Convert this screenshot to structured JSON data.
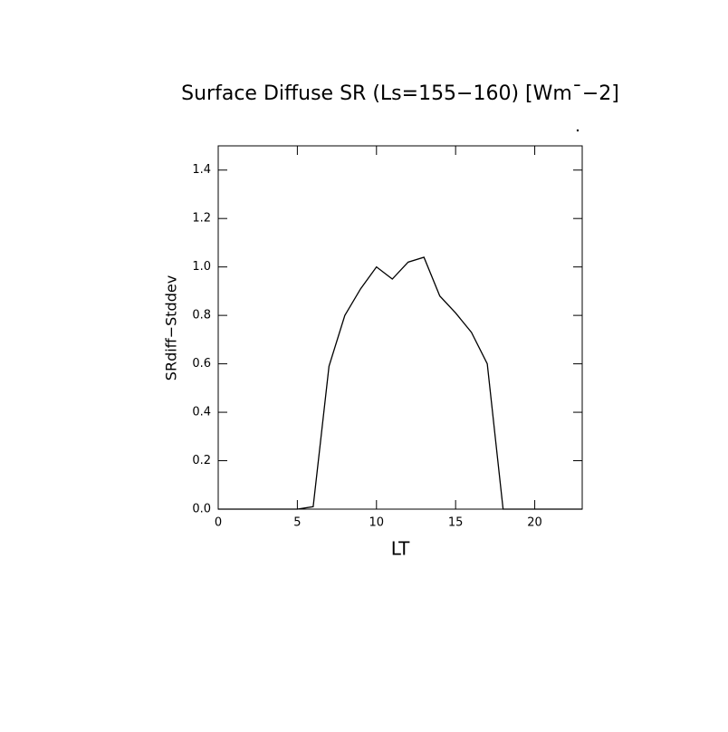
{
  "chart_data": {
    "type": "line",
    "title": "Surface Diffuse SR (Ls=155−160) [Wm¯−2]",
    "x_label": "LT",
    "y_label": "SRdiff−Stddev",
    "x": [
      0,
      1,
      2,
      3,
      4,
      5,
      6,
      7,
      8,
      9,
      10,
      11,
      12,
      13,
      14,
      15,
      16,
      17,
      18,
      19,
      20,
      21,
      22,
      23
    ],
    "series": [
      {
        "name": "SRdiff-Stddev",
        "color": "#000000",
        "values": [
          0,
          0,
          0,
          0,
          0,
          0,
          0.01,
          0.59,
          0.8,
          0.91,
          1.0,
          0.95,
          1.02,
          1.04,
          0.88,
          0.81,
          0.73,
          0.6,
          0,
          0,
          0,
          0,
          0,
          0
        ]
      }
    ],
    "xlim": [
      0,
      23
    ],
    "xticks": [
      0,
      5,
      10,
      15,
      20
    ],
    "ylim": [
      0,
      1.5
    ],
    "yticks": [
      {
        "value": 0,
        "label": "0.0"
      },
      {
        "value": 0.2,
        "label": "0.2"
      },
      {
        "value": 0.4,
        "label": "0.4"
      },
      {
        "value": 0.6,
        "label": "0.6"
      },
      {
        "value": 0.8,
        "label": "0.8"
      },
      {
        "value": 1.0,
        "label": "1.0"
      },
      {
        "value": 1.2,
        "label": "1.2"
      },
      {
        "value": 1.4,
        "label": "1.4"
      }
    ]
  }
}
